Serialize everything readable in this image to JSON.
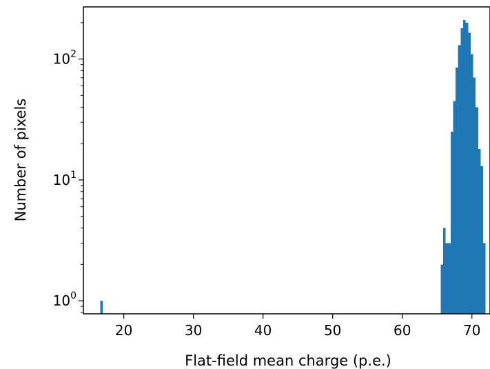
{
  "chart_data": {
    "type": "bar",
    "title": "",
    "xlabel": "Flat-field mean charge (p.e.)",
    "ylabel": "Number of pixels",
    "yscale": "log",
    "xlim": [
      14.2,
      72.6
    ],
    "ylim": [
      0.78,
      270
    ],
    "xticks": [
      20,
      30,
      40,
      50,
      60,
      70
    ],
    "yticks": [
      {
        "value": 1,
        "base": "10",
        "exp": "0"
      },
      {
        "value": 10,
        "base": "10",
        "exp": "1"
      },
      {
        "value": 100,
        "base": "10",
        "exp": "2"
      }
    ],
    "bin_width": 0.36,
    "bars": [
      {
        "x": 16.6,
        "count": 1
      },
      {
        "x": 65.5,
        "count": 2
      },
      {
        "x": 65.86,
        "count": 4
      },
      {
        "x": 66.22,
        "count": 3
      },
      {
        "x": 66.58,
        "count": 3
      },
      {
        "x": 66.94,
        "count": 25
      },
      {
        "x": 67.3,
        "count": 45
      },
      {
        "x": 67.66,
        "count": 85
      },
      {
        "x": 68.02,
        "count": 130
      },
      {
        "x": 68.38,
        "count": 180
      },
      {
        "x": 68.74,
        "count": 210
      },
      {
        "x": 69.1,
        "count": 200
      },
      {
        "x": 69.46,
        "count": 165
      },
      {
        "x": 69.82,
        "count": 110
      },
      {
        "x": 70.18,
        "count": 70
      },
      {
        "x": 70.54,
        "count": 40
      },
      {
        "x": 70.9,
        "count": 18
      },
      {
        "x": 71.26,
        "count": 13
      },
      {
        "x": 71.62,
        "count": 3
      }
    ],
    "color": "#1f77b4",
    "grid": false,
    "legend": "none"
  }
}
